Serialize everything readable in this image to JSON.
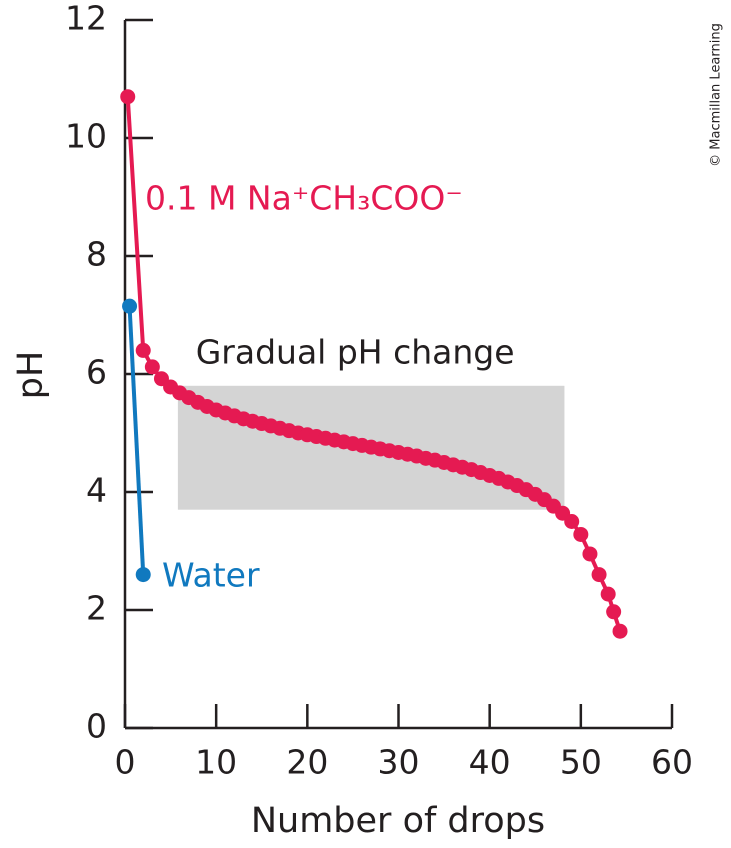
{
  "chart_data": {
    "type": "line",
    "xlabel": "Number of drops",
    "ylabel": "pH",
    "xlim": [
      0,
      60
    ],
    "ylim": [
      0,
      12
    ],
    "xticks": [
      0,
      10,
      20,
      30,
      40,
      50,
      60
    ],
    "yticks": [
      0,
      2,
      4,
      6,
      8,
      10,
      12
    ],
    "series": [
      {
        "name": "0.1 M Na⁺CH₃COO⁻",
        "color": "#e51a52",
        "x": [
          0.3,
          2,
          3,
          4,
          5,
          6,
          7,
          8,
          9,
          10,
          11,
          12,
          13,
          14,
          15,
          16,
          17,
          18,
          19,
          20,
          21,
          22,
          23,
          24,
          25,
          26,
          27,
          28,
          29,
          30,
          31,
          32,
          33,
          34,
          35,
          36,
          37,
          38,
          39,
          40,
          41,
          42,
          43,
          44,
          45,
          46,
          47,
          48,
          49,
          50,
          51,
          52,
          53,
          53.6,
          54.3
        ],
        "values": [
          10.7,
          6.4,
          6.12,
          5.92,
          5.78,
          5.68,
          5.6,
          5.52,
          5.45,
          5.39,
          5.34,
          5.29,
          5.24,
          5.2,
          5.16,
          5.12,
          5.08,
          5.04,
          5.0,
          4.97,
          4.94,
          4.91,
          4.88,
          4.85,
          4.82,
          4.79,
          4.76,
          4.73,
          4.7,
          4.67,
          4.64,
          4.61,
          4.57,
          4.54,
          4.5,
          4.46,
          4.42,
          4.38,
          4.33,
          4.28,
          4.23,
          4.17,
          4.11,
          4.04,
          3.96,
          3.87,
          3.76,
          3.64,
          3.5,
          3.28,
          2.95,
          2.6,
          2.27,
          1.97,
          1.64
        ]
      },
      {
        "name": "Water",
        "color": "#1079bf",
        "x": [
          0.5,
          2
        ],
        "values": [
          7.15,
          2.6
        ]
      }
    ],
    "annotations": [
      {
        "text": "Gradual pH change",
        "region": {
          "x": [
            5.8,
            48.2
          ],
          "y": [
            3.7,
            5.8
          ]
        },
        "color": "#d4d4d4"
      }
    ],
    "credit": "© Macmillan Learning"
  }
}
